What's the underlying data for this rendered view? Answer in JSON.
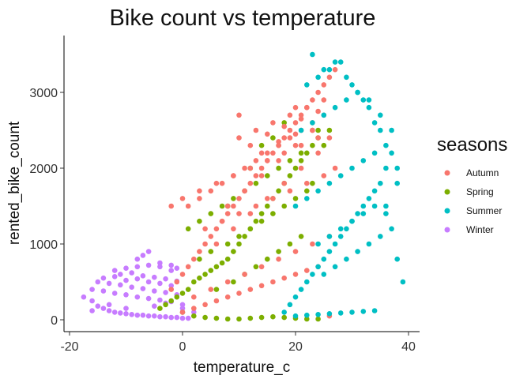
{
  "chart_data": {
    "type": "scatter",
    "title": "Bike count vs temperature",
    "xlabel": "temperature_c",
    "ylabel": "rented_bike_count",
    "xlim": [
      -20,
      40
    ],
    "ylim": [
      0,
      3600
    ],
    "x_ticks": [
      -20,
      0,
      20,
      40
    ],
    "x_tick_labels": [
      "-20",
      "0",
      "20",
      "40"
    ],
    "y_ticks": [
      0,
      1000,
      2000,
      3000
    ],
    "y_tick_labels": [
      "0",
      "1000",
      "2000",
      "3000"
    ],
    "grid": false,
    "legend": {
      "title": "seasons",
      "position": "right",
      "entries": [
        {
          "label": "Autumn",
          "color": "#F8766D"
        },
        {
          "label": "Spring",
          "color": "#7CAE00"
        },
        {
          "label": "Summer",
          "color": "#00BFC4"
        },
        {
          "label": "Winter",
          "color": "#C77CFF"
        }
      ]
    },
    "series": [
      {
        "name": "Winter",
        "color": "#C77CFF",
        "x": [
          -17.5,
          -16,
          -15,
          -14,
          -13,
          -12,
          -11,
          -10,
          -9,
          -8,
          -7,
          -6,
          -5,
          -4,
          -3,
          -2,
          -1,
          0,
          1,
          -16,
          -14,
          -12,
          -10,
          -8,
          -6,
          -4,
          -2,
          0,
          -15,
          -13,
          -11,
          -9,
          -7,
          -5,
          -3,
          -1,
          -14,
          -12,
          -10,
          -8,
          -6,
          -4,
          -2,
          -11,
          -9,
          -7,
          -5,
          -3,
          -1,
          -12,
          -10,
          -8,
          -6,
          -4,
          -2,
          -8,
          -7,
          -6,
          -4,
          -2,
          -1,
          -16,
          -13,
          -10,
          -5,
          -3,
          0,
          2
        ],
        "y": [
          300,
          250,
          180,
          150,
          120,
          100,
          90,
          80,
          70,
          60,
          60,
          50,
          50,
          40,
          40,
          30,
          30,
          20,
          20,
          400,
          380,
          350,
          330,
          300,
          280,
          260,
          240,
          200,
          500,
          480,
          460,
          430,
          410,
          380,
          360,
          330,
          550,
          570,
          520,
          540,
          500,
          480,
          450,
          600,
          620,
          580,
          560,
          540,
          510,
          650,
          680,
          700,
          720,
          700,
          650,
          800,
          850,
          900,
          750,
          720,
          680,
          120,
          200,
          150,
          180,
          220,
          150,
          100
        ]
      },
      {
        "name": "Spring",
        "color": "#7CAE00",
        "x": [
          -4,
          -3,
          -2,
          -1,
          0,
          0,
          1,
          2,
          3,
          4,
          5,
          6,
          7,
          8,
          9,
          10,
          11,
          12,
          13,
          14,
          15,
          16,
          17,
          18,
          19,
          20,
          21,
          22,
          23,
          24,
          25,
          26,
          2,
          4,
          6,
          8,
          10,
          12,
          14,
          16,
          18,
          20,
          22,
          24,
          1,
          3,
          5,
          7,
          9,
          11,
          13,
          15,
          17,
          19,
          21,
          3,
          5,
          8,
          10,
          12,
          14,
          16,
          18,
          20,
          22,
          23,
          24,
          6,
          9,
          11,
          13,
          15,
          17,
          19,
          21,
          8,
          12,
          14,
          16,
          18
        ],
        "y": [
          150,
          200,
          250,
          300,
          350,
          100,
          400,
          500,
          550,
          600,
          650,
          700,
          750,
          800,
          900,
          1000,
          1100,
          1200,
          1300,
          1400,
          1500,
          1600,
          1700,
          1800,
          1900,
          2000,
          2100,
          2200,
          2300,
          2400,
          2300,
          2500,
          50,
          30,
          20,
          10,
          10,
          20,
          30,
          40,
          30,
          20,
          10,
          10,
          1200,
          1300,
          1400,
          1500,
          1600,
          1700,
          1800,
          1900,
          2000,
          2100,
          2200,
          800,
          900,
          1000,
          1100,
          1200,
          1300,
          1400,
          1500,
          1600,
          1700,
          1800,
          2500,
          400,
          500,
          600,
          700,
          800,
          900,
          1000,
          1100,
          1500,
          2000,
          2300,
          2400,
          2600
        ]
      },
      {
        "name": "Autumn",
        "color": "#F8766D",
        "x": [
          -2,
          -1,
          0,
          1,
          2,
          3,
          4,
          5,
          6,
          7,
          8,
          9,
          10,
          11,
          12,
          13,
          14,
          15,
          16,
          17,
          18,
          19,
          20,
          21,
          22,
          23,
          24,
          25,
          26,
          27,
          0,
          2,
          4,
          6,
          8,
          10,
          12,
          14,
          16,
          18,
          20,
          22,
          24,
          26,
          1,
          3,
          5,
          7,
          9,
          11,
          13,
          15,
          17,
          19,
          21,
          23,
          25,
          -2,
          0,
          3,
          6,
          9,
          12,
          15,
          18,
          21,
          24,
          2,
          5,
          8,
          11,
          14,
          17,
          20,
          23,
          26,
          4,
          7,
          10,
          13,
          16,
          19,
          22,
          25,
          6,
          9,
          12,
          15,
          18,
          21,
          24,
          27,
          8,
          11,
          14,
          17,
          20,
          23,
          26,
          10,
          13,
          16,
          19,
          22,
          25,
          12,
          15,
          18,
          21,
          24,
          14,
          17,
          20,
          23,
          10,
          20
        ],
        "y": [
          400,
          500,
          600,
          700,
          800,
          900,
          1000,
          1100,
          1200,
          1300,
          1400,
          1500,
          1600,
          1700,
          1800,
          1900,
          2000,
          2100,
          2200,
          2300,
          2400,
          2500,
          2600,
          2700,
          2800,
          2900,
          3000,
          3100,
          3200,
          3300,
          100,
          150,
          200,
          250,
          300,
          350,
          400,
          450,
          500,
          550,
          600,
          650,
          700,
          50,
          1500,
          1600,
          1700,
          1800,
          1900,
          2000,
          2100,
          2200,
          2300,
          2400,
          2500,
          2600,
          2700,
          1500,
          1600,
          1700,
          1800,
          1900,
          2000,
          2100,
          2200,
          2300,
          2400,
          300,
          400,
          500,
          600,
          700,
          800,
          900,
          1000,
          1100,
          1200,
          1300,
          1400,
          1500,
          1600,
          1700,
          1800,
          1900,
          1000,
          1200,
          1400,
          1600,
          1800,
          2000,
          2200,
          2000,
          1500,
          1700,
          1900,
          2100,
          2300,
          2500,
          2400,
          2400,
          2500,
          2600,
          2700,
          2800,
          2900,
          2300,
          2450,
          2550,
          2650,
          2750,
          2200,
          2350,
          2450,
          2500,
          2700,
          2800
        ]
      },
      {
        "name": "Summer",
        "color": "#00BFC4",
        "x": [
          18,
          19,
          20,
          21,
          22,
          23,
          24,
          25,
          26,
          27,
          28,
          29,
          30,
          31,
          32,
          33,
          34,
          35,
          36,
          37,
          38,
          39,
          20,
          22,
          24,
          26,
          28,
          30,
          32,
          34,
          36,
          38,
          21,
          23,
          25,
          27,
          29,
          31,
          33,
          35,
          37,
          22,
          24,
          26,
          28,
          30,
          32,
          34,
          36,
          38,
          23,
          25,
          27,
          29,
          31,
          33,
          35,
          37,
          24,
          26,
          28,
          30,
          32,
          34,
          36,
          25,
          27,
          29,
          31,
          33,
          35,
          20,
          22,
          24,
          26,
          28,
          30,
          32,
          34
        ],
        "y": [
          100,
          200,
          300,
          400,
          500,
          600,
          700,
          800,
          900,
          1000,
          1100,
          1200,
          1300,
          1400,
          1500,
          1600,
          1700,
          1800,
          1500,
          1200,
          800,
          500,
          1500,
          1600,
          1700,
          1800,
          1900,
          2000,
          2100,
          2200,
          2000,
          1800,
          2500,
          2600,
          2700,
          2800,
          2900,
          3000,
          2900,
          2700,
          2500,
          3100,
          3200,
          3300,
          3400,
          3100,
          2900,
          2600,
          2300,
          2000,
          3500,
          3300,
          3400,
          3200,
          3000,
          2800,
          2500,
          2200,
          1000,
          1100,
          1200,
          1300,
          1400,
          1500,
          1400,
          600,
          700,
          800,
          900,
          1000,
          1100,
          50,
          60,
          70,
          80,
          90,
          100,
          110,
          120
        ]
      }
    ]
  }
}
